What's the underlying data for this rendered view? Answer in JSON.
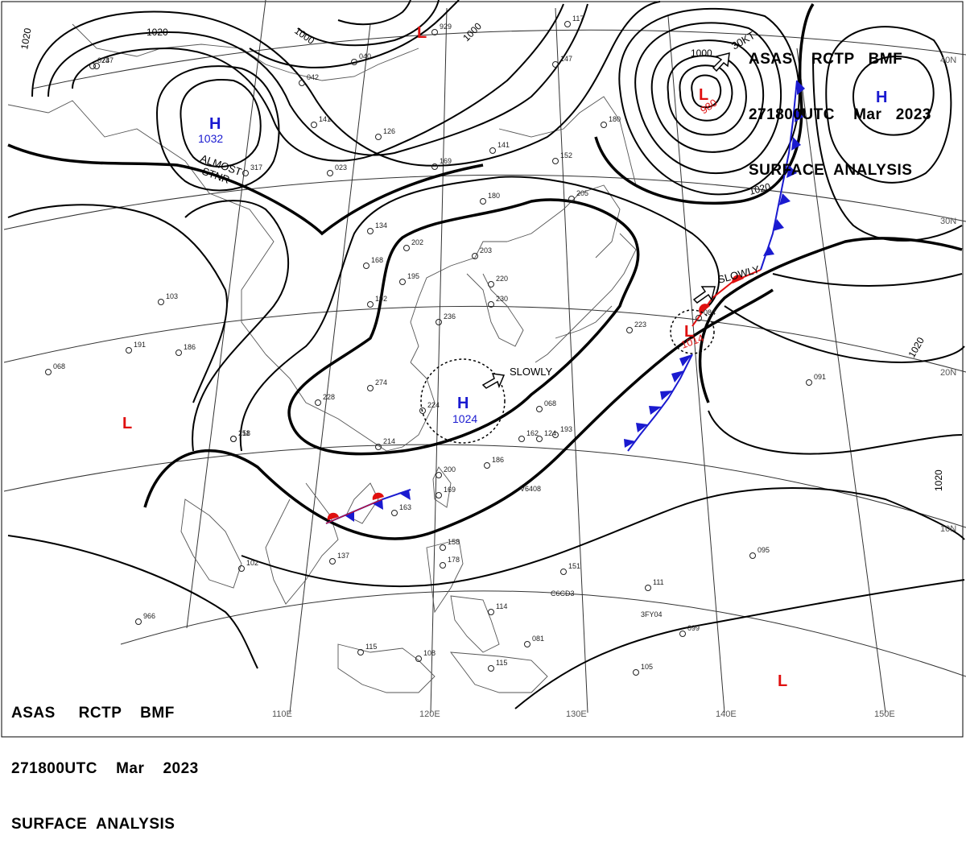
{
  "header_top": {
    "line1": "ASAS    RCTP   BMF",
    "line2": "271800UTC    Mar   2023",
    "line3": "SURFACE  ANALYSIS"
  },
  "header_bottom": {
    "line1": "ASAS     RCTP    BMF",
    "line2": "271800UTC    Mar    2023",
    "line3": "SURFACE  ANALYSIS"
  },
  "longitude_labels": [
    "110E",
    "120E",
    "130E",
    "140E",
    "150E"
  ],
  "latitude_labels": [
    "40N",
    "30N",
    "20N",
    "10N"
  ],
  "isobar_labels": [
    "1020",
    "1020",
    "1000",
    "1000",
    "1020",
    "1000",
    "1020",
    "1020"
  ],
  "pressure_centers": [
    {
      "type": "H",
      "value": "1032",
      "color": "#1a1ad0"
    },
    {
      "type": "L",
      "value": "980",
      "color": "#e01010"
    },
    {
      "type": "H",
      "value": "",
      "color": "#1a1ad0"
    },
    {
      "type": "L",
      "value": "",
      "color": "#e01010"
    },
    {
      "type": "H",
      "value": "1024",
      "color": "#1a1ad0"
    },
    {
      "type": "L",
      "value": "1014",
      "color": "#e01010"
    },
    {
      "type": "L",
      "value": "",
      "color": "#e01010"
    },
    {
      "type": "L",
      "value": "",
      "color": "#e01010"
    }
  ],
  "annotations": {
    "almost_stnr_1": "ALMOST",
    "almost_stnr_2": "STNR",
    "speed": "30KT",
    "slowly_1": "SLOWLY",
    "slowly_2": "SLOWLY"
  },
  "station_values": [
    "247",
    "317",
    "023",
    "141",
    "126",
    "040",
    "042",
    "929",
    "169",
    "141",
    "152",
    "180",
    "205",
    "180",
    "147",
    "117",
    "134",
    "168",
    "192",
    "195",
    "202",
    "203",
    "220",
    "230",
    "236",
    "274",
    "224",
    "214",
    "228",
    "211",
    "223",
    "068",
    "162",
    "186",
    "193",
    "169",
    "200",
    "163",
    "151",
    "178",
    "158",
    "114",
    "081",
    "115",
    "115",
    "108",
    "105",
    "099",
    "111",
    "095",
    "084",
    "091",
    "158",
    "103",
    "186",
    "191",
    "068",
    "137",
    "102",
    "966",
    "073",
    "124",
    "088",
    "086",
    "247",
    "163"
  ],
  "ship_ids": [
    "V6408",
    "C6CD3",
    "3FY04"
  ],
  "colors": {
    "high": "#1a1ad0",
    "low": "#e01010",
    "cold_front": "#1a1ad0",
    "warm_front": "#e01010",
    "isobar": "#000000",
    "coast": "#555555"
  }
}
